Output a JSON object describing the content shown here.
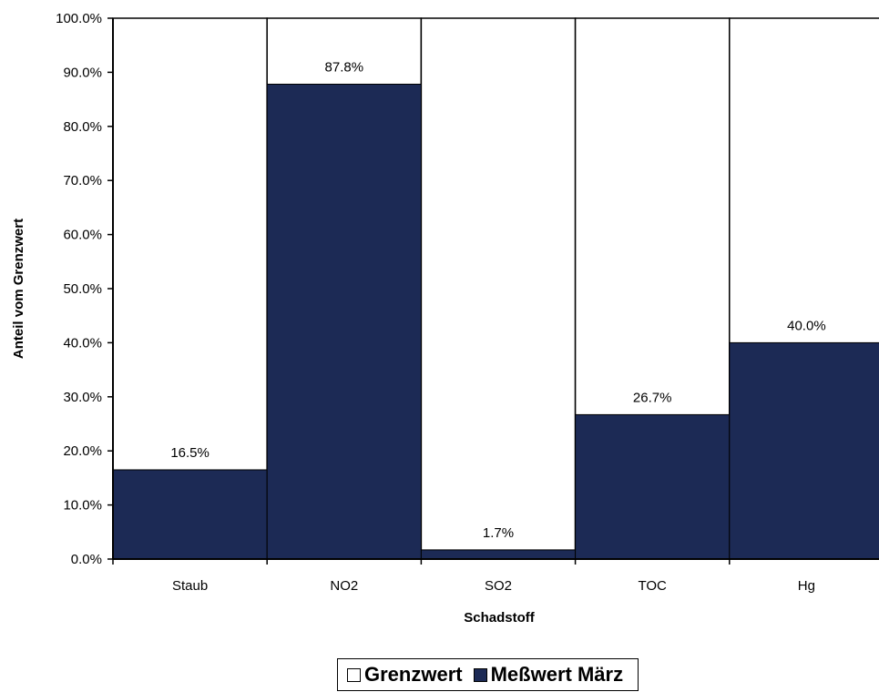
{
  "chart_data": {
    "type": "bar",
    "ylabel": "Anteil vom Grenzwert",
    "xlabel": "Schadstoff",
    "categories": [
      "Staub",
      "NO2",
      "SO2",
      "TOC",
      "Hg"
    ],
    "series": [
      {
        "name": "Grenzwert",
        "values": [
          100,
          100,
          100,
          100,
          100
        ],
        "color": "#ffffff"
      },
      {
        "name": "Meßwert März",
        "values": [
          16.5,
          87.8,
          1.7,
          26.7,
          40.0
        ],
        "color": "#1c2a55"
      }
    ],
    "data_labels": [
      "16.5%",
      "87.8%",
      "1.7%",
      "26.7%",
      "40.0%"
    ],
    "y_ticks": [
      "0.0%",
      "10.0%",
      "20.0%",
      "30.0%",
      "40.0%",
      "50.0%",
      "60.0%",
      "70.0%",
      "80.0%",
      "90.0%",
      "100.0%"
    ],
    "ylim": [
      0,
      100
    ],
    "grid": false,
    "legend_position": "bottom"
  }
}
